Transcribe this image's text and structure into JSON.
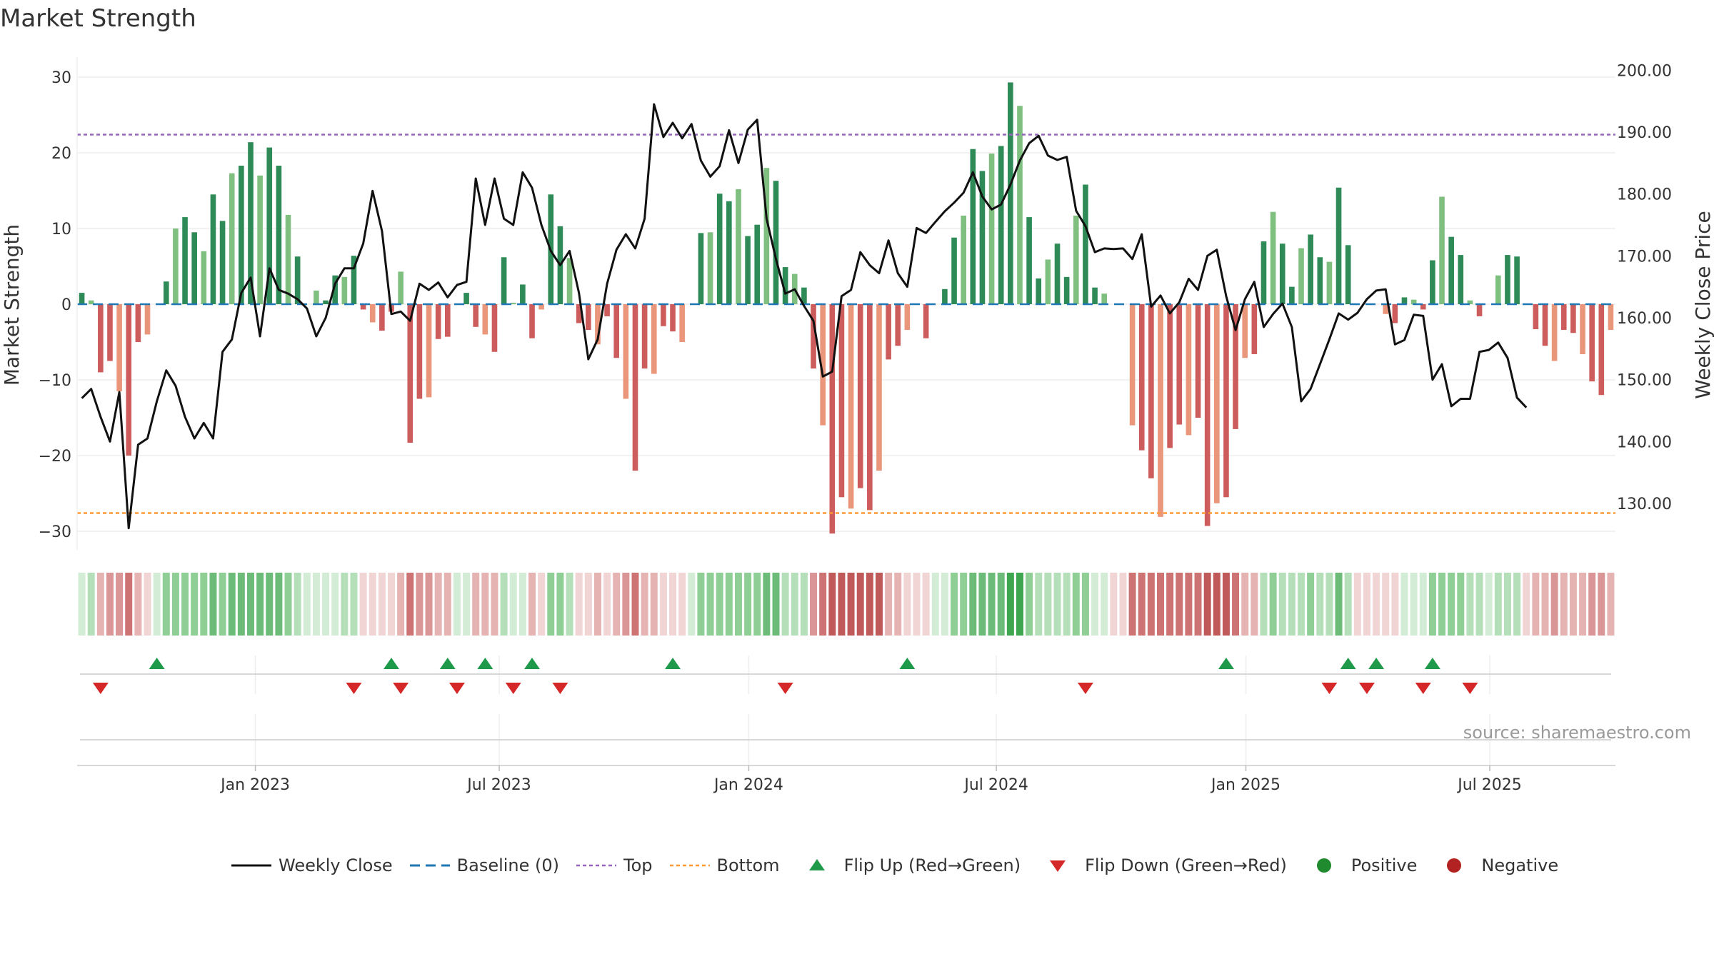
{
  "title": "Market Strength",
  "source_text": "source: sharemaestro.com",
  "legend": [
    {
      "label": "Weekly Close",
      "kind": "line",
      "color": "#111111"
    },
    {
      "label": "Baseline (0)",
      "kind": "dash",
      "color": "#1f77b4"
    },
    {
      "label": "Top",
      "kind": "dot",
      "color": "#9467bd"
    },
    {
      "label": "Bottom",
      "kind": "dot",
      "color": "#ff9933"
    },
    {
      "label": "Flip Up (Red→Green)",
      "kind": "tri-up",
      "color": "#1f9a4a"
    },
    {
      "label": "Flip Down (Green→Red)",
      "kind": "tri-down",
      "color": "#d62728"
    },
    {
      "label": "Positive",
      "kind": "circle",
      "color": "#1f8a2e"
    },
    {
      "label": "Negative",
      "kind": "circle",
      "color": "#b22222"
    }
  ],
  "colors": {
    "pos_dark": "#2e8b57",
    "pos_light": "#7fbf7f",
    "neg_dark": "#cd5c5c",
    "neg_light": "#e9967a",
    "price": "#111111",
    "baseline": "#1f77b4",
    "top": "#9467bd",
    "bottom": "#ff9933"
  },
  "chart_data": {
    "type": "bar",
    "title": "Market Strength",
    "ylabel_left": "Market Strength",
    "ylabel_right": "Weekly Close Price",
    "left_ylim": [
      -33,
      33
    ],
    "left_ticks": [
      30,
      20,
      10,
      0,
      -10,
      -20,
      -30
    ],
    "left_tick_labels": [
      "30",
      "20",
      "10",
      "0",
      "−10",
      "−20",
      "−30"
    ],
    "right_ylim": [
      122.5,
      203.5
    ],
    "right_ticks": [
      200,
      190,
      180,
      170,
      160,
      150,
      140,
      130
    ],
    "right_tick_labels": [
      "200.00",
      "190.00",
      "180.00",
      "170.00",
      "160.00",
      "150.00",
      "140.00",
      "130.00"
    ],
    "x_ticks": [
      19,
      45,
      71.6,
      98,
      124.6,
      150.6
    ],
    "x_tick_labels": [
      "Jan 2023",
      "Jul 2023",
      "Jan 2024",
      "Jul 2024",
      "Jan 2025",
      "Jul 2025"
    ],
    "top_level": 22.4,
    "bottom_level": -27.6,
    "baseline": 0,
    "strength": [
      1.5,
      0.5,
      -9,
      -7.5,
      -11.5,
      -20,
      -5,
      -4,
      0,
      3,
      10,
      11.5,
      9.5,
      7,
      14.5,
      11,
      17.3,
      18.3,
      21.4,
      17,
      20.7,
      18.3,
      11.8,
      6.3,
      0,
      1.8,
      0.5,
      3.8,
      3.6,
      6.4,
      -0.7,
      -2.4,
      -3.5,
      -1,
      4.3,
      -18.3,
      -12.5,
      -12.3,
      -4.6,
      -4.3,
      0,
      1.5,
      -3,
      -4,
      -6.3,
      6.2,
      0.2,
      2.6,
      -4.5,
      -0.7,
      14.5,
      10.3,
      6.1,
      -2.5,
      -3.4,
      -5.3,
      -1.6,
      -7.1,
      -12.5,
      -22,
      -8.5,
      -9.2,
      -2.9,
      -3.6,
      -5,
      0,
      9.4,
      9.5,
      14.6,
      13.6,
      15.2,
      9,
      10.5,
      18,
      16.3,
      4.9,
      4,
      2.2,
      -8.5,
      -16,
      -30.3,
      -25.5,
      -27,
      -24.3,
      -27.2,
      -22,
      -7.3,
      -5.5,
      -3.4,
      0,
      -4.5,
      0,
      2,
      8.8,
      11.7,
      20.5,
      17.6,
      19.9,
      20.9,
      29.3,
      26.2,
      11.5,
      3.4,
      5.9,
      8,
      3.6,
      11.7,
      15.8,
      2.2,
      1.4,
      0,
      0,
      -16,
      -19.3,
      -23,
      -28.1,
      -19,
      -15.9,
      -17.3,
      -15,
      -29.3,
      -26.3,
      -25.5,
      -16.5,
      -7.1,
      -6.6,
      8.3,
      12.2,
      8,
      2.3,
      7.4,
      9.2,
      6.2,
      5.6,
      15.4,
      7.8,
      0,
      0,
      0,
      -1.3,
      -2.5,
      0.9,
      0.6,
      -0.7,
      5.8,
      14.2,
      8.9,
      6.5,
      0.5,
      -1.6,
      0,
      3.8,
      6.5,
      6.3,
      0,
      -3.3,
      -5.5,
      -7.5,
      -3.4,
      -3.8,
      -6.6,
      -10.2,
      -12,
      -3.4
    ],
    "weekly_close": [
      147,
      148.5,
      144,
      140,
      148,
      126,
      139.5,
      140.5,
      146.5,
      151.5,
      149,
      144,
      140.5,
      143,
      140.5,
      154.5,
      156.5,
      164,
      166.5,
      157,
      168,
      164.5,
      163.9,
      163,
      161.5,
      157,
      160,
      165.5,
      168,
      168,
      172,
      180.5,
      174,
      160.6,
      161,
      159.5,
      165.5,
      164.5,
      165.7,
      163.3,
      165.3,
      165.8,
      182.5,
      175,
      182.5,
      176,
      175,
      183.5,
      181,
      175,
      170.8,
      168.5,
      170.8,
      164,
      153.3,
      156.5,
      165.5,
      171,
      173.5,
      171.2,
      176,
      194.5,
      189.2,
      191.5,
      189,
      191.3,
      185.4,
      182.8,
      184.5,
      190.3,
      185,
      190.4,
      192,
      176,
      169.5,
      163.9,
      164.6,
      161.9,
      159.5,
      150.5,
      151.3,
      163.5,
      164.5,
      170.6,
      168.5,
      167.2,
      172.5,
      167.2,
      165,
      174.5,
      173.7,
      175.5,
      177.2,
      178.6,
      180.2,
      183.5,
      179.6,
      177.5,
      178.3,
      181.5,
      185.4,
      188.2,
      189.4,
      186.2,
      185.5,
      186,
      177.3,
      174.8,
      170.6,
      171.2,
      171.1,
      171.2,
      169.5,
      173.5,
      161.8,
      163.6,
      160.7,
      162.5,
      166.3,
      164.5,
      170,
      171,
      163.5,
      158,
      163,
      165.8,
      158.5,
      160.6,
      162.3,
      158.5,
      146.5,
      148.5,
      152.5,
      156.5,
      160.7,
      159.7,
      160.8,
      163,
      164.4,
      164.6,
      155.7,
      156.4,
      160.5,
      160.3,
      150,
      152.5,
      145.7,
      146.9,
      146.9,
      154.5,
      154.8,
      156,
      153.5,
      147.1,
      145.5
    ],
    "flips_up": [
      8,
      33,
      39,
      43,
      48,
      63,
      88,
      122,
      135,
      138,
      144
    ],
    "flips_down": [
      2,
      29,
      34,
      40,
      46,
      51,
      75,
      107,
      133,
      137,
      143,
      148
    ],
    "strip_levels": [
      1,
      2,
      -2,
      -3,
      -3,
      -4,
      -2,
      -1,
      1,
      3,
      3,
      3,
      3,
      3,
      4,
      3,
      4,
      4,
      4,
      4,
      4,
      4,
      3,
      2,
      1,
      1,
      1,
      1,
      2,
      2,
      -1,
      -1,
      -1,
      -1,
      -2,
      -4,
      -3,
      -3,
      -2,
      -2,
      1,
      1,
      -2,
      -2,
      -2,
      2,
      1,
      1,
      -2,
      -1,
      3,
      3,
      2,
      -1,
      -1,
      -2,
      -1,
      -2,
      -3,
      -4,
      -2,
      -2,
      -1,
      -1,
      -1,
      1,
      3,
      3,
      3,
      3,
      3,
      3,
      3,
      4,
      4,
      2,
      2,
      2,
      -3,
      -4,
      -5,
      -5,
      -5,
      -5,
      -5,
      -5,
      -2,
      -2,
      -1,
      -1,
      -1,
      1,
      1,
      3,
      3,
      4,
      4,
      4,
      4,
      5,
      5,
      3,
      2,
      2,
      2,
      2,
      3,
      3,
      1,
      1,
      -1,
      -1,
      -4,
      -4,
      -4,
      -4,
      -4,
      -4,
      -4,
      -4,
      -5,
      -5,
      -5,
      -4,
      -2,
      -2,
      2,
      3,
      2,
      2,
      2,
      3,
      2,
      2,
      4,
      2,
      -1,
      -1,
      -1,
      -1,
      -1,
      1,
      1,
      1,
      3,
      3,
      3,
      3,
      2,
      2,
      1,
      2,
      2,
      2,
      -1,
      -2,
      -2,
      -3,
      -2,
      -2,
      -2,
      -3,
      -3,
      -2
    ]
  }
}
